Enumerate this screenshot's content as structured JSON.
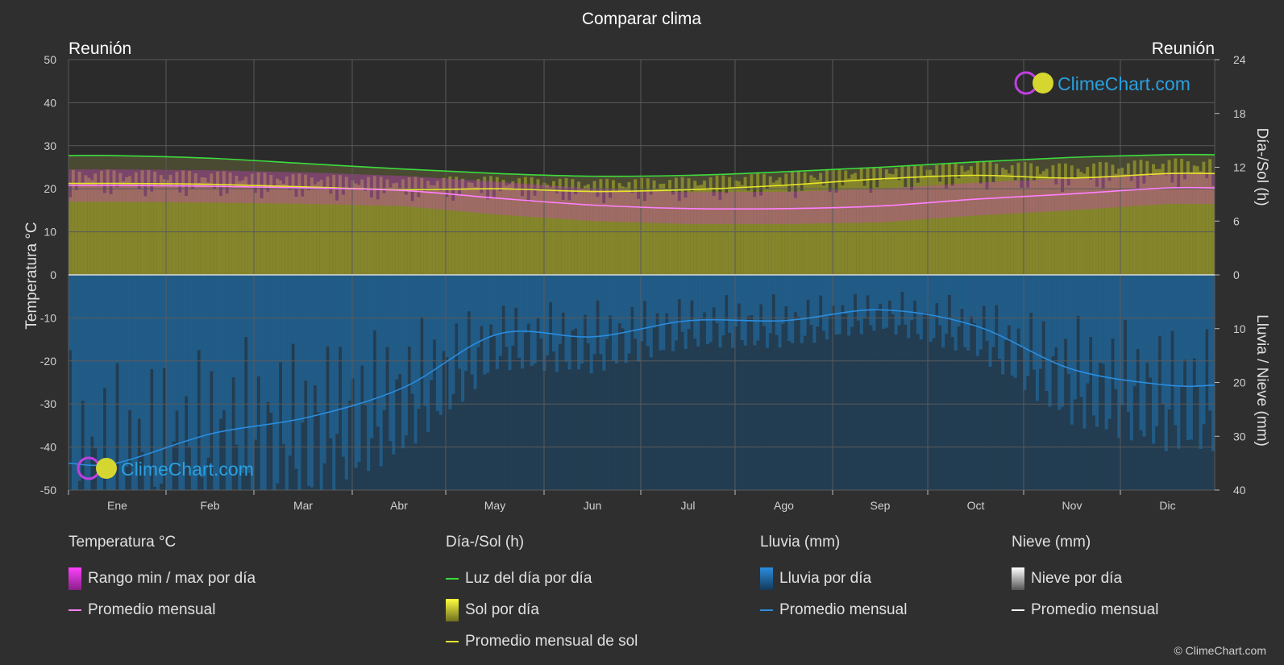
{
  "title": "Comparar clima",
  "location_left": "Reunión",
  "location_right": "Reunión",
  "watermark": "ClimeChart.com",
  "copyright": "© ClimeChart.com",
  "colors": {
    "background": "#2f2f2f",
    "daylight": "#3ddc3d",
    "sunshine_avg": "#e6e62a",
    "sunshine_fill": "#a3a332",
    "temp_range": "#d23cd2",
    "temp_avg": "#ff80ff",
    "rain_fill": "#1f6fa8",
    "rain_avg": "#2a8de0",
    "snow_avg": "#ffffff",
    "watermark": "#2aa0e0"
  },
  "chart_data": {
    "type": "area",
    "months": [
      "Ene",
      "Feb",
      "Mar",
      "Abr",
      "May",
      "Jun",
      "Jul",
      "Ago",
      "Sep",
      "Oct",
      "Nov",
      "Dic"
    ],
    "left_axis": {
      "label": "Temperatura °C",
      "min": -50,
      "max": 50,
      "ticks": [
        50,
        40,
        30,
        20,
        10,
        0,
        -10,
        -20,
        -30,
        -40,
        -50
      ]
    },
    "right_axis_top": {
      "label": "Día-/Sol (h)",
      "min": 0,
      "max": 24,
      "ticks": [
        24,
        18,
        12,
        6,
        0
      ]
    },
    "right_axis_bottom": {
      "label": "Lluvia / Nieve (mm)",
      "min": 0,
      "max": 40,
      "ticks": [
        0,
        10,
        20,
        30,
        40
      ]
    },
    "series": [
      {
        "name": "Luz del día por día",
        "unit": "h",
        "values": [
          13.3,
          13.0,
          12.4,
          11.8,
          11.3,
          11.0,
          11.1,
          11.5,
          12.0,
          12.6,
          13.1,
          13.4
        ]
      },
      {
        "name": "Promedio mensual de sol",
        "unit": "h",
        "values": [
          10.2,
          10.1,
          9.8,
          9.5,
          9.6,
          9.3,
          9.5,
          10.0,
          10.7,
          11.1,
          10.8,
          11.3
        ]
      },
      {
        "name": "Promedio mensual",
        "unit": "°C",
        "values": [
          20.8,
          20.6,
          20.2,
          19.6,
          17.8,
          16.2,
          15.4,
          15.4,
          16.0,
          17.6,
          18.8,
          20.2
        ]
      },
      {
        "name": "Promedio mensual",
        "unit": "mm",
        "values": [
          35.0,
          29.5,
          26.5,
          21.0,
          11.0,
          11.5,
          8.5,
          8.5,
          6.5,
          9.5,
          17.5,
          20.5
        ]
      }
    ],
    "temp_range_band": {
      "max": [
        22.5,
        22.3,
        21.8,
        21.0,
        19.6,
        18.0,
        17.2,
        17.3,
        18.0,
        19.4,
        20.5,
        21.8
      ],
      "min": [
        19.0,
        18.8,
        18.5,
        18.0,
        16.0,
        14.5,
        13.8,
        13.8,
        14.2,
        15.8,
        17.0,
        18.5
      ]
    }
  },
  "legend": {
    "temp": {
      "title": "Temperatura °C",
      "range": "Rango min / max por día",
      "avg": "Promedio mensual"
    },
    "sun": {
      "title": "Día-/Sol (h)",
      "daylight": "Luz del día por día",
      "sun_day": "Sol por día",
      "sun_avg": "Promedio mensual de sol"
    },
    "rain": {
      "title": "Lluvia (mm)",
      "rain_day": "Lluvia por día",
      "avg": "Promedio mensual"
    },
    "snow": {
      "title": "Nieve (mm)",
      "snow_day": "Nieve por día",
      "avg": "Promedio mensual"
    }
  }
}
